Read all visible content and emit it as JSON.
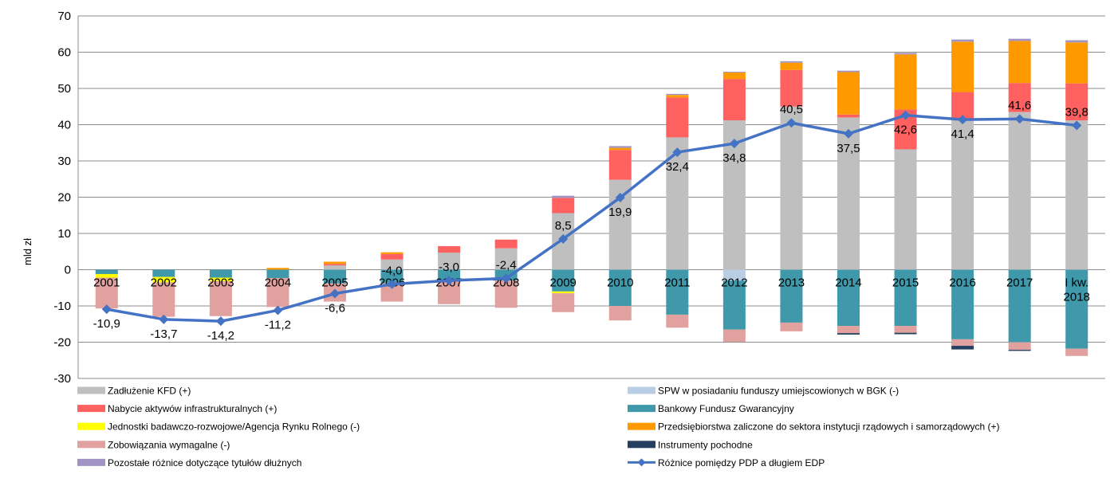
{
  "chart_data": {
    "type": "bar",
    "title": "",
    "xlabel": "",
    "ylabel": "mld zł",
    "ylim": [
      -30,
      70
    ],
    "yticks": [
      70,
      60,
      50,
      40,
      30,
      20,
      10,
      0,
      -10,
      -20,
      -30
    ],
    "grid": true,
    "legend_position": "bottom",
    "categories": [
      "2001",
      "2002",
      "2003",
      "2004",
      "2005",
      "2006",
      "2007",
      "2008",
      "2009",
      "2010",
      "2011",
      "2012",
      "2013",
      "2014",
      "2015",
      "2016",
      "2017",
      "I kw. 2018"
    ],
    "positive_stack_order": [
      "Zadłużenie KFD (+)",
      "Nabycie aktywów infrastrukturalnych (+)",
      "Przedsiębiorstwa zaliczone do sektora instytucji rządowych i samorządowych (+)",
      "Pozostałe różnice dotyczące tytułów dłużnych"
    ],
    "negative_stack_order": [
      "SPW w posiadaniu funduszy umiejscowionych w BGK (-)",
      "Bankowy Fundusz Gwarancyjny",
      "Jednostki badawczo-rozwojowe/Agencja Rynku Rolnego (-)",
      "Zobowiązania wymagalne (-)",
      "Instrumenty pochodne",
      "Pozostałe różnice dotyczące tytułów dłużnych"
    ],
    "series": [
      {
        "name": "Zadłużenie KFD (+)",
        "color": "#BFBFBF",
        "values": [
          0,
          0,
          0,
          0,
          1.2,
          2.8,
          4.7,
          5.9,
          15.6,
          24.8,
          36.5,
          41.2,
          45.0,
          42.0,
          33.2,
          41.5,
          43.5,
          41.2
        ]
      },
      {
        "name": "SPW w posiadaniu funduszy umiejscowionych w BGK (-)",
        "color": "#B9CDE5",
        "values": [
          0,
          0,
          0,
          0,
          0,
          0,
          0,
          0,
          0,
          0,
          0,
          -3.0,
          0,
          0,
          0,
          0,
          0,
          0
        ]
      },
      {
        "name": "Nabycie aktywów infrastrukturalnych (+)",
        "color": "#FF6161",
        "values": [
          0,
          0,
          0,
          0,
          0.4,
          1.5,
          1.8,
          2.4,
          4.2,
          8.2,
          11.0,
          11.4,
          10.1,
          0.8,
          11.0,
          7.5,
          8.0,
          10.2
        ]
      },
      {
        "name": "Bankowy Fundusz Gwarancyjny",
        "color": "#4099AB",
        "values": [
          -1.2,
          -2.0,
          -2.2,
          -2.3,
          -3.8,
          -3.8,
          -3.3,
          -3.0,
          -6.0,
          -10.0,
          -12.4,
          -13.5,
          -14.6,
          -15.5,
          -15.5,
          -19.2,
          -20.0,
          -21.8
        ]
      },
      {
        "name": "Jednostki badawczo-rozwojowe/Agencja Rynku Rolnego (-)",
        "color": "#FFFF00",
        "values": [
          -1.0,
          -1.5,
          -1.0,
          0,
          0,
          0,
          0,
          0,
          -0.5,
          0,
          0,
          0,
          0,
          0,
          0,
          0,
          0,
          0
        ]
      },
      {
        "name": "Przedsiębiorstwa zaliczone do sektora instytucji rządowych i samorządowych (+)",
        "color": "#FF9900",
        "values": [
          0,
          0,
          0,
          0.5,
          0.6,
          0.5,
          0,
          0,
          0,
          0.6,
          0.7,
          1.8,
          2.0,
          11.7,
          15.2,
          13.9,
          11.6,
          11.3
        ]
      },
      {
        "name": "Zobowiązania wymagalne (-)",
        "color": "#E0A19F",
        "values": [
          -8.5,
          -9.5,
          -9.6,
          -8.0,
          -5.0,
          -5.0,
          -6.2,
          -7.5,
          -5.2,
          -4.0,
          -3.6,
          -3.4,
          -2.4,
          -2.0,
          -1.9,
          -1.8,
          -2.1,
          -2.0
        ]
      },
      {
        "name": "Instrumenty pochodne",
        "color": "#243F60",
        "values": [
          0,
          0,
          0,
          0,
          0,
          0,
          0,
          0,
          0,
          0,
          0,
          0,
          0,
          -0.4,
          -0.4,
          -1.0,
          -0.3,
          0
        ]
      },
      {
        "name": "Pozostałe różnice dotyczące tytułów dłużnych",
        "color": "#A194C4",
        "values": [
          0,
          0,
          0,
          0,
          0,
          0,
          0,
          0,
          0.6,
          0.5,
          0.3,
          0.2,
          0.4,
          0.4,
          0.4,
          0.6,
          0.6,
          0.6
        ]
      },
      {
        "name": "Różnice pomiędzy PDP a długiem EDP",
        "color": "#4472C4",
        "type": "line",
        "values": [
          -10.9,
          -13.7,
          -14.2,
          -11.2,
          -6.6,
          -4.0,
          -3.0,
          -2.4,
          8.5,
          19.9,
          32.4,
          34.8,
          40.5,
          37.5,
          42.6,
          41.4,
          41.6,
          39.8
        ],
        "labels": [
          "-10,9",
          "-13,7",
          "-14,2",
          "-11,2",
          "-6,6",
          "-4,0",
          "-3,0",
          "-2,4",
          "8,5",
          "19,9",
          "32,4",
          "34,8",
          "40,5",
          "37,5",
          "42,6",
          "41,4",
          "41,6",
          "39,8"
        ]
      }
    ],
    "legend": [
      {
        "name": "Zadłużenie KFD (+)",
        "color": "#BFBFBF",
        "kind": "box"
      },
      {
        "name": "SPW w posiadaniu funduszy umiejscowionych w BGK (-)",
        "color": "#B9CDE5",
        "kind": "box"
      },
      {
        "name": "Nabycie aktywów infrastrukturalnych (+)",
        "color": "#FF6161",
        "kind": "box"
      },
      {
        "name": "Bankowy Fundusz Gwarancyjny",
        "color": "#4099AB",
        "kind": "box"
      },
      {
        "name": "Jednostki badawczo-rozwojowe/Agencja Rynku Rolnego (-)",
        "color": "#FFFF00",
        "kind": "box"
      },
      {
        "name": "Przedsiębiorstwa zaliczone do sektora instytucji rządowych i samorządowych (+)",
        "color": "#FF9900",
        "kind": "box"
      },
      {
        "name": "Zobowiązania wymagalne (-)",
        "color": "#E0A19F",
        "kind": "box"
      },
      {
        "name": "Instrumenty pochodne",
        "color": "#243F60",
        "kind": "box"
      },
      {
        "name": "Pozostałe różnice dotyczące tytułów dłużnych",
        "color": "#A194C4",
        "kind": "box"
      },
      {
        "name": "Różnice pomiędzy PDP a długiem EDP",
        "color": "#4472C4",
        "kind": "line"
      }
    ]
  }
}
